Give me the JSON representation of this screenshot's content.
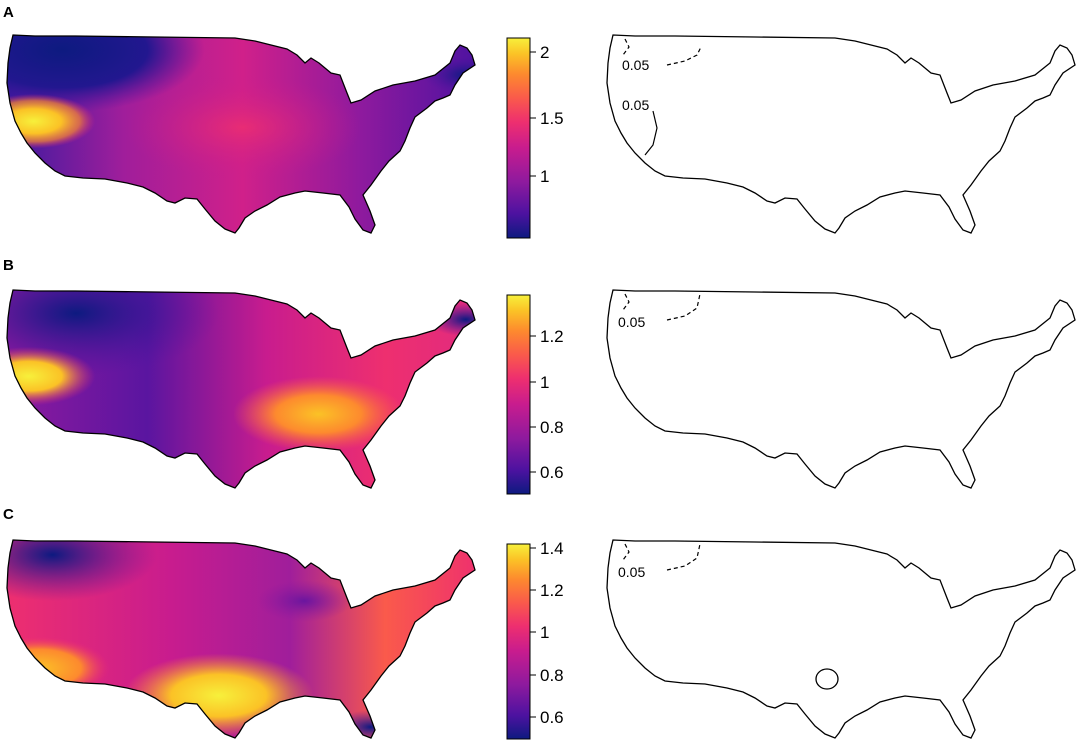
{
  "colors": {
    "scale": [
      "#0d1a80",
      "#4c12a0",
      "#8e1a9e",
      "#c81c8e",
      "#ee2f6f",
      "#fa5a4b",
      "#fd8a2e",
      "#fbc226",
      "#f7f03b"
    ],
    "outline": "#000000",
    "background": "#ffffff"
  },
  "panels": [
    {
      "letter": "A",
      "colorbar_ticks": [
        "2",
        "1.5",
        "1"
      ],
      "contour_labels": [
        "0.05",
        "0.05"
      ]
    },
    {
      "letter": "B",
      "colorbar_ticks": [
        "1.2",
        "1",
        "0.8",
        "0.6"
      ],
      "contour_labels": [
        "0.05"
      ]
    },
    {
      "letter": "C",
      "colorbar_ticks": [
        "1.4",
        "1.2",
        "1",
        "0.8",
        "0.6"
      ],
      "contour_labels": [
        "0.05"
      ]
    }
  ]
}
